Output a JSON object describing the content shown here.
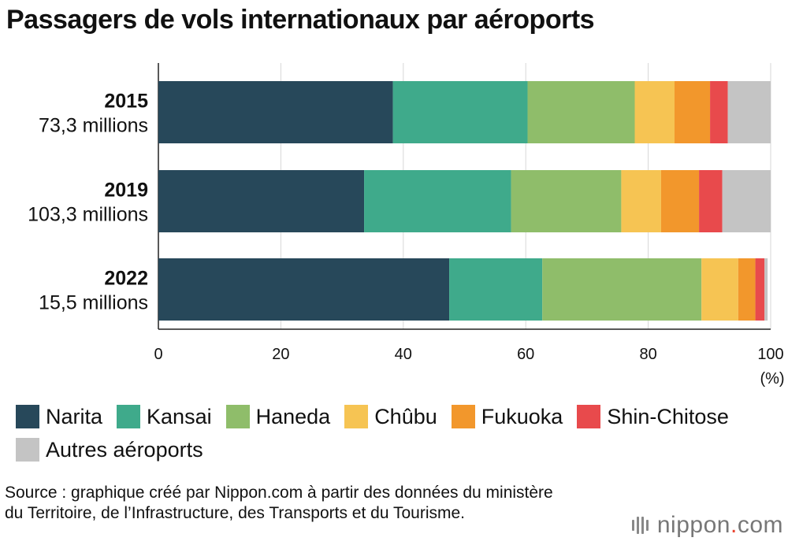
{
  "chart_data": {
    "type": "bar",
    "orientation": "horizontal",
    "stacked": true,
    "title": "Passagers de vols internationaux par aéroports",
    "unit": "(%)",
    "xlim": [
      0,
      100
    ],
    "xticks": [
      "0",
      "20",
      "40",
      "60",
      "80",
      "100"
    ],
    "categories": [
      {
        "year": "2015",
        "total": "73,3 millions"
      },
      {
        "year": "2019",
        "total": "103,3 millions"
      },
      {
        "year": "2022",
        "total": "15,5 millions"
      }
    ],
    "series": [
      {
        "name": "Narita",
        "color": "#27485a",
        "values": [
          38.3,
          33.6,
          47.5
        ]
      },
      {
        "name": "Kansai",
        "color": "#3faa8b",
        "values": [
          22.0,
          24.0,
          15.2
        ]
      },
      {
        "name": "Haneda",
        "color": "#8fbd6a",
        "values": [
          17.5,
          18.0,
          26.0
        ]
      },
      {
        "name": "Chûbu",
        "color": "#f6c453",
        "values": [
          6.5,
          6.5,
          6.0
        ]
      },
      {
        "name": "Fukuoka",
        "color": "#f2972c",
        "values": [
          5.8,
          6.2,
          2.8
        ]
      },
      {
        "name": "Shin-Chitose",
        "color": "#e84a4c",
        "values": [
          2.9,
          3.8,
          1.5
        ]
      },
      {
        "name": "Autres aéroports",
        "color": "#c4c4c4",
        "values": [
          7.0,
          7.9,
          0.5
        ]
      }
    ],
    "legend_position": "bottom",
    "grid": "vertical"
  },
  "source": "Source : graphique créé par Nippon.com à partir des données du ministère du Territoire, de l’Infrastructure, des Transports et du Tourisme.",
  "brand": {
    "name": "nippon",
    "dot": ".",
    "tld": "com"
  }
}
